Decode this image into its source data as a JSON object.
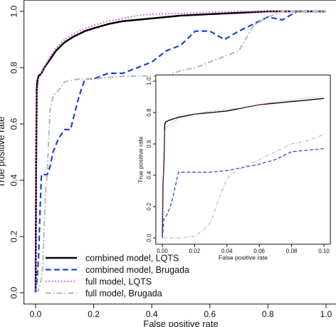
{
  "chart_data": [
    {
      "type": "line",
      "panel": "main",
      "xlabel": "False positive rate",
      "ylabel": "True positive rate",
      "xlim": [
        0,
        1
      ],
      "ylim": [
        0,
        1
      ],
      "xticks": [
        "0.0",
        "0.2",
        "0.4",
        "0.6",
        "0.8",
        "1.0"
      ],
      "yticks": [
        "0.0",
        "0.2",
        "0.4",
        "0.6",
        "0.8",
        "1.0"
      ],
      "grid": false,
      "legend_position": "bottom-left",
      "series": [
        {
          "name": "combined model, LQTS",
          "color": "#000000",
          "style": "solid",
          "x": [
            0,
            0.002,
            0.004,
            0.006,
            0.01,
            0.02,
            0.03,
            0.05,
            0.07,
            0.1,
            0.13,
            0.17,
            0.2,
            0.25,
            0.3,
            0.4,
            0.5,
            0.6,
            0.7,
            0.8,
            0.9,
            1.0
          ],
          "y": [
            0,
            0.46,
            0.72,
            0.75,
            0.77,
            0.78,
            0.8,
            0.83,
            0.86,
            0.89,
            0.91,
            0.93,
            0.94,
            0.955,
            0.965,
            0.975,
            0.985,
            0.99,
            0.995,
            1.0,
            1.0,
            1.0
          ]
        },
        {
          "name": "combined model, Brugada",
          "color": "#1f3fd8",
          "style": "dashed",
          "x": [
            0,
            0.005,
            0.01,
            0.015,
            0.02,
            0.04,
            0.05,
            0.06,
            0.08,
            0.1,
            0.12,
            0.15,
            0.17,
            0.2,
            0.25,
            0.3,
            0.35,
            0.4,
            0.45,
            0.5,
            0.55,
            0.6,
            0.65,
            0.7,
            0.8,
            0.85,
            0.9,
            1.0
          ],
          "y": [
            0,
            0.05,
            0.12,
            0.28,
            0.42,
            0.42,
            0.45,
            0.5,
            0.55,
            0.58,
            0.58,
            0.7,
            0.76,
            0.76,
            0.78,
            0.78,
            0.8,
            0.82,
            0.86,
            0.88,
            0.93,
            0.93,
            0.9,
            0.93,
            0.98,
            0.97,
            1.0,
            1.0
          ]
        },
        {
          "name": "full model, LQTS",
          "color": "#e060e0",
          "style": "dotted",
          "x": [
            0,
            0.002,
            0.004,
            0.01,
            0.02,
            0.03,
            0.05,
            0.07,
            0.1,
            0.13,
            0.17,
            0.2,
            0.25,
            0.3,
            0.35,
            0.4,
            0.5,
            0.6,
            0.7,
            0.8,
            1.0
          ],
          "y": [
            0,
            0.3,
            0.7,
            0.76,
            0.78,
            0.8,
            0.84,
            0.87,
            0.9,
            0.92,
            0.94,
            0.95,
            0.965,
            0.975,
            0.985,
            0.99,
            0.993,
            0.997,
            1.0,
            1.0,
            1.0
          ]
        },
        {
          "name": "full model, Brugada",
          "color": "#bbbbbb",
          "style": "dashdot",
          "x": [
            0,
            0.01,
            0.02,
            0.025,
            0.03,
            0.035,
            0.04,
            0.045,
            0.05,
            0.06,
            0.08,
            0.1,
            0.15,
            0.2,
            0.3,
            0.45,
            0.5,
            0.55,
            0.6,
            0.7,
            0.75,
            0.8,
            0.85,
            1.0
          ],
          "y": [
            0,
            0.01,
            0.05,
            0.1,
            0.25,
            0.38,
            0.42,
            0.55,
            0.65,
            0.7,
            0.72,
            0.75,
            0.76,
            0.76,
            0.77,
            0.77,
            0.79,
            0.8,
            0.82,
            0.86,
            0.95,
            0.98,
            1.0,
            1.0
          ]
        }
      ]
    },
    {
      "type": "line",
      "panel": "inset",
      "xlabel": "False positive rate",
      "ylabel": "True positive rate",
      "xlim": [
        0,
        0.1
      ],
      "ylim": [
        0,
        1
      ],
      "xticks": [
        "0.00",
        "0.02",
        "0.04",
        "0.06",
        "0.08",
        "0.10"
      ],
      "yticks": [
        "0.0",
        "0.2",
        "0.4",
        "0.6",
        "0.8",
        "1.0"
      ],
      "grid": false,
      "series": [
        {
          "name": "combined model, LQTS",
          "color": "#000000",
          "style": "solid",
          "x": [
            0,
            0.0005,
            0.001,
            0.0015,
            0.002,
            0.004,
            0.01,
            0.02,
            0.03,
            0.04,
            0.05,
            0.06,
            0.07,
            0.08,
            0.09,
            0.1
          ],
          "y": [
            0,
            0.35,
            0.47,
            0.72,
            0.74,
            0.75,
            0.77,
            0.79,
            0.8,
            0.81,
            0.83,
            0.85,
            0.86,
            0.87,
            0.88,
            0.89
          ]
        },
        {
          "name": "combined model, Brugada",
          "color": "#1f3fd8",
          "style": "dashed",
          "x": [
            0,
            0.0005,
            0.001,
            0.003,
            0.005,
            0.007,
            0.01,
            0.015,
            0.02,
            0.03,
            0.04,
            0.05,
            0.06,
            0.07,
            0.08,
            0.09,
            0.1
          ],
          "y": [
            0,
            0.05,
            0.12,
            0.15,
            0.2,
            0.28,
            0.42,
            0.42,
            0.42,
            0.42,
            0.43,
            0.45,
            0.47,
            0.5,
            0.55,
            0.56,
            0.57
          ]
        },
        {
          "name": "full model, LQTS",
          "color": "#e060e0",
          "style": "dotted",
          "x": [
            0,
            0.0005,
            0.001,
            0.0015,
            0.002,
            0.004,
            0.01,
            0.02,
            0.03,
            0.04,
            0.05,
            0.06,
            0.07,
            0.08,
            0.09,
            0.1
          ],
          "y": [
            0,
            0.25,
            0.55,
            0.68,
            0.7,
            0.72,
            0.76,
            0.79,
            0.81,
            0.82,
            0.83,
            0.85,
            0.87,
            0.88,
            0.895,
            0.9
          ]
        },
        {
          "name": "full model, Brugada",
          "color": "#bbbbbb",
          "style": "dashdot",
          "x": [
            0,
            0.01,
            0.02,
            0.025,
            0.03,
            0.035,
            0.04,
            0.045,
            0.05,
            0.06,
            0.07,
            0.08,
            0.09,
            0.1
          ],
          "y": [
            0,
            0.0,
            0.01,
            0.05,
            0.1,
            0.25,
            0.38,
            0.42,
            0.45,
            0.5,
            0.55,
            0.6,
            0.62,
            0.66
          ]
        }
      ]
    }
  ]
}
